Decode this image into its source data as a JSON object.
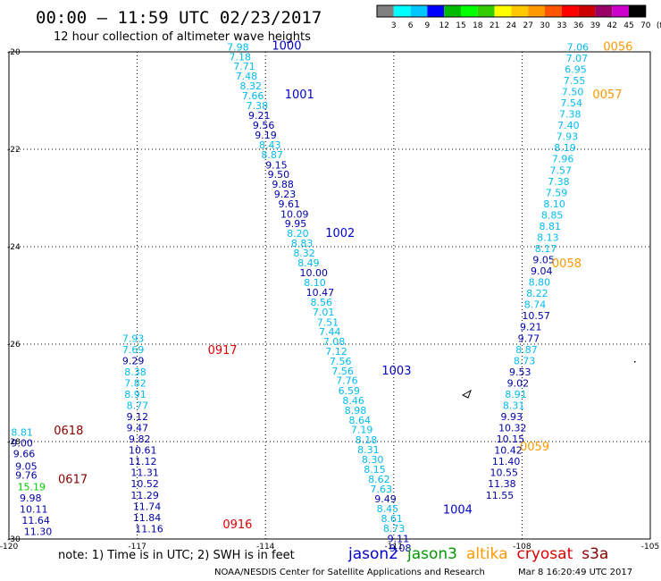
{
  "header": {
    "title": "00:00 — 11:59 UTC 02/23/2017",
    "subtitle": "12 hour collection of altimeter wave heights"
  },
  "colorbar": {
    "colors": [
      "#808080",
      "#00ffff",
      "#00c8ff",
      "#0000ff",
      "#00bb00",
      "#00ff00",
      "#33cc00",
      "#ffff00",
      "#ffc800",
      "#ff9900",
      "#ff5500",
      "#ff0000",
      "#cc0000",
      "#990066",
      "#cc00cc",
      "#000000"
    ],
    "labels": [
      "3",
      "6",
      "9",
      "12",
      "15",
      "18",
      "21",
      "24",
      "27",
      "30",
      "33",
      "36",
      "39",
      "42",
      "45",
      "70",
      "(ft)"
    ]
  },
  "footer": {
    "note": "note:  1) Time is in UTC;  2) SWH is in feet",
    "missions": [
      {
        "name": "jason2",
        "color": "#0000cc"
      },
      {
        "name": "jason3",
        "color": "#009900"
      },
      {
        "name": "altika",
        "color": "#ff9900"
      },
      {
        "name": "cryosat",
        "color": "#dd0000"
      },
      {
        "name": "s3a",
        "color": "#880000"
      }
    ],
    "credit": "NOAA/NESDIS Center for Satellite Applications and Research",
    "timestamp": "Mar  8 16:20:49 UTC 2017"
  },
  "chart_data": {
    "type": "map-scatter",
    "xlim": [
      -120,
      -105
    ],
    "ylim": [
      -30,
      -20
    ],
    "xticks": [
      "-120",
      "-117",
      "-114",
      "-111",
      "-108",
      "-105"
    ],
    "yticks": [
      "-20",
      "-22",
      "-24",
      "-26",
      "-28",
      "-30"
    ],
    "tracks": [
      {
        "mission": "jason2",
        "labels": [
          {
            "text": "1000",
            "lon": -113.85,
            "lat": -19.95
          },
          {
            "text": "1001",
            "lon": -113.55,
            "lat": -20.95
          },
          {
            "text": "1002",
            "lon": -112.6,
            "lat": -23.8
          },
          {
            "text": "1003",
            "lon": -111.28,
            "lat": -26.62
          },
          {
            "text": "1004",
            "lon": -109.85,
            "lat": -29.48
          }
        ],
        "points": [
          {
            "v": "7.98",
            "lon": -114.9,
            "lat": -19.97
          },
          {
            "v": "7.18",
            "lon": -114.85,
            "lat": -20.17
          },
          {
            "v": "7.71",
            "lon": -114.75,
            "lat": -20.37
          },
          {
            "v": "7.48",
            "lon": -114.7,
            "lat": -20.57
          },
          {
            "v": "8.32",
            "lon": -114.6,
            "lat": -20.77
          },
          {
            "v": "7.66",
            "lon": -114.55,
            "lat": -20.97
          },
          {
            "v": "7.38",
            "lon": -114.45,
            "lat": -21.17
          },
          {
            "v": "9.21",
            "lon": -114.4,
            "lat": -21.38
          },
          {
            "v": "9.56",
            "lon": -114.3,
            "lat": -21.58
          },
          {
            "v": "9.19",
            "lon": -114.25,
            "lat": -21.78
          },
          {
            "v": "8.43",
            "lon": -114.15,
            "lat": -21.98
          },
          {
            "v": "8.87",
            "lon": -114.1,
            "lat": -22.18
          },
          {
            "v": "9.15",
            "lon": -114.0,
            "lat": -22.39
          },
          {
            "v": "9.50",
            "lon": -113.95,
            "lat": -22.59
          },
          {
            "v": "9.88",
            "lon": -113.85,
            "lat": -22.79
          },
          {
            "v": "9.23",
            "lon": -113.8,
            "lat": -22.99
          },
          {
            "v": "9.61",
            "lon": -113.7,
            "lat": -23.19
          },
          {
            "v": "10.09",
            "lon": -113.65,
            "lat": -23.4
          },
          {
            "v": "9.95",
            "lon": -113.55,
            "lat": -23.6
          },
          {
            "v": "8.20",
            "lon": -113.5,
            "lat": -23.8
          },
          {
            "v": "8.83",
            "lon": -113.4,
            "lat": -24.0
          },
          {
            "v": "8.32",
            "lon": -113.35,
            "lat": -24.2
          },
          {
            "v": "8.49",
            "lon": -113.25,
            "lat": -24.4
          },
          {
            "v": "10.00",
            "lon": -113.2,
            "lat": -24.61
          },
          {
            "v": "8.10",
            "lon": -113.1,
            "lat": -24.81
          },
          {
            "v": "10.47",
            "lon": -113.05,
            "lat": -25.01
          },
          {
            "v": "8.56",
            "lon": -112.95,
            "lat": -25.21
          },
          {
            "v": "7.01",
            "lon": -112.9,
            "lat": -25.41
          },
          {
            "v": "7.51",
            "lon": -112.8,
            "lat": -25.62
          },
          {
            "v": "7.44",
            "lon": -112.75,
            "lat": -25.82
          },
          {
            "v": "7.08",
            "lon": -112.65,
            "lat": -26.02
          },
          {
            "v": "7.12",
            "lon": -112.6,
            "lat": -26.22
          },
          {
            "v": "7.56",
            "lon": -112.5,
            "lat": -26.42
          },
          {
            "v": "7.56",
            "lon": -112.45,
            "lat": -26.62
          },
          {
            "v": "7.76",
            "lon": -112.35,
            "lat": -26.82
          },
          {
            "v": "6.59",
            "lon": -112.3,
            "lat": -27.03
          },
          {
            "v": "8.46",
            "lon": -112.2,
            "lat": -27.23
          },
          {
            "v": "8.98",
            "lon": -112.15,
            "lat": -27.43
          },
          {
            "v": "8.64",
            "lon": -112.05,
            "lat": -27.63
          },
          {
            "v": "7.19",
            "lon": -112.0,
            "lat": -27.83
          },
          {
            "v": "8.18",
            "lon": -111.9,
            "lat": -28.04
          },
          {
            "v": "8.31",
            "lon": -111.85,
            "lat": -28.24
          },
          {
            "v": "8.30",
            "lon": -111.75,
            "lat": -28.44
          },
          {
            "v": "8.15",
            "lon": -111.7,
            "lat": -28.64
          },
          {
            "v": "8.62",
            "lon": -111.6,
            "lat": -28.84
          },
          {
            "v": "7.63",
            "lon": -111.55,
            "lat": -29.05
          },
          {
            "v": "9.49",
            "lon": -111.45,
            "lat": -29.25
          },
          {
            "v": "8.45",
            "lon": -111.4,
            "lat": -29.45
          },
          {
            "v": "8.61",
            "lon": -111.3,
            "lat": -29.65
          },
          {
            "v": "8.73",
            "lon": -111.25,
            "lat": -29.85
          },
          {
            "v": "9.11",
            "lon": -111.15,
            "lat": -30.06
          },
          {
            "v": "9.08",
            "lon": -111.1,
            "lat": -30.26
          }
        ]
      },
      {
        "mission": "altika",
        "labels": [
          {
            "text": "0056",
            "lon": -106.1,
            "lat": -19.97
          },
          {
            "text": "0057",
            "lon": -106.35,
            "lat": -20.95
          },
          {
            "text": "0058",
            "lon": -107.3,
            "lat": -24.42
          },
          {
            "text": "0059",
            "lon": -108.05,
            "lat": -28.18
          }
        ],
        "points": [
          {
            "v": "7.06",
            "lon": -106.95,
            "lat": -19.97
          },
          {
            "v": "7.07",
            "lon": -106.97,
            "lat": -20.2
          },
          {
            "v": "6.95",
            "lon": -107.0,
            "lat": -20.43
          },
          {
            "v": "7.55",
            "lon": -107.03,
            "lat": -20.66
          },
          {
            "v": "7.50",
            "lon": -107.07,
            "lat": -20.89
          },
          {
            "v": "7.54",
            "lon": -107.1,
            "lat": -21.12
          },
          {
            "v": "7.38",
            "lon": -107.13,
            "lat": -21.35
          },
          {
            "v": "7.40",
            "lon": -107.17,
            "lat": -21.58
          },
          {
            "v": "7.93",
            "lon": -107.2,
            "lat": -21.81
          },
          {
            "v": "8.19",
            "lon": -107.25,
            "lat": -22.04
          },
          {
            "v": "7.96",
            "lon": -107.3,
            "lat": -22.27
          },
          {
            "v": "7.57",
            "lon": -107.35,
            "lat": -22.5
          },
          {
            "v": "7.38",
            "lon": -107.4,
            "lat": -22.73
          },
          {
            "v": "7.59",
            "lon": -107.45,
            "lat": -22.96
          },
          {
            "v": "8.10",
            "lon": -107.5,
            "lat": -23.19
          },
          {
            "v": "8.85",
            "lon": -107.55,
            "lat": -23.42
          },
          {
            "v": "8.81",
            "lon": -107.6,
            "lat": -23.65
          },
          {
            "v": "8.13",
            "lon": -107.65,
            "lat": -23.88
          },
          {
            "v": "8.17",
            "lon": -107.7,
            "lat": -24.11
          },
          {
            "v": "9.05",
            "lon": -107.75,
            "lat": -24.34
          },
          {
            "v": "9.04",
            "lon": -107.8,
            "lat": -24.57
          },
          {
            "v": "8.80",
            "lon": -107.85,
            "lat": -24.8
          },
          {
            "v": "8.22",
            "lon": -107.9,
            "lat": -25.03
          },
          {
            "v": "8.74",
            "lon": -107.95,
            "lat": -25.26
          },
          {
            "v": "10.57",
            "lon": -108.0,
            "lat": -25.49
          },
          {
            "v": "9.21",
            "lon": -108.05,
            "lat": -25.72
          },
          {
            "v": "9.77",
            "lon": -108.1,
            "lat": -25.95
          },
          {
            "v": "8.87",
            "lon": -108.15,
            "lat": -26.18
          },
          {
            "v": "8.73",
            "lon": -108.2,
            "lat": -26.41
          },
          {
            "v": "9.53",
            "lon": -108.3,
            "lat": -26.64
          },
          {
            "v": "9.02",
            "lon": -108.35,
            "lat": -26.87
          },
          {
            "v": "8.91",
            "lon": -108.4,
            "lat": -27.1
          },
          {
            "v": "8.31",
            "lon": -108.45,
            "lat": -27.33
          },
          {
            "v": "9.93",
            "lon": -108.5,
            "lat": -27.56
          },
          {
            "v": "10.32",
            "lon": -108.55,
            "lat": -27.79
          },
          {
            "v": "10.15",
            "lon": -108.6,
            "lat": -28.02
          },
          {
            "v": "10.42",
            "lon": -108.65,
            "lat": -28.25
          },
          {
            "v": "11.40",
            "lon": -108.7,
            "lat": -28.48
          },
          {
            "v": "10.55",
            "lon": -108.75,
            "lat": -28.71
          },
          {
            "v": "11.38",
            "lon": -108.8,
            "lat": -28.94
          },
          {
            "v": "11.55",
            "lon": -108.85,
            "lat": -29.17
          }
        ]
      },
      {
        "mission": "cryosat",
        "labels": [
          {
            "text": "0917",
            "lon": -115.35,
            "lat": -26.2
          },
          {
            "text": "0916",
            "lon": -115.0,
            "lat": -29.78
          }
        ],
        "points": [
          {
            "v": "7.93",
            "lon": -117.35,
            "lat": -25.95
          },
          {
            "v": "7.69",
            "lon": -117.35,
            "lat": -26.18
          },
          {
            "v": "9.29",
            "lon": -117.35,
            "lat": -26.41
          },
          {
            "v": "8.38",
            "lon": -117.3,
            "lat": -26.64
          },
          {
            "v": "7.82",
            "lon": -117.3,
            "lat": -26.87
          },
          {
            "v": "8.91",
            "lon": -117.3,
            "lat": -27.1
          },
          {
            "v": "8.77",
            "lon": -117.25,
            "lat": -27.33
          },
          {
            "v": "9.12",
            "lon": -117.25,
            "lat": -27.56
          },
          {
            "v": "9.47",
            "lon": -117.25,
            "lat": -27.79
          },
          {
            "v": "9.82",
            "lon": -117.2,
            "lat": -28.02
          },
          {
            "v": "10.61",
            "lon": -117.2,
            "lat": -28.25
          },
          {
            "v": "11.12",
            "lon": -117.2,
            "lat": -28.48
          },
          {
            "v": "11.31",
            "lon": -117.15,
            "lat": -28.71
          },
          {
            "v": "10.52",
            "lon": -117.15,
            "lat": -28.94
          },
          {
            "v": "11.29",
            "lon": -117.15,
            "lat": -29.17
          },
          {
            "v": "11.74",
            "lon": -117.1,
            "lat": -29.4
          },
          {
            "v": "11.84",
            "lon": -117.1,
            "lat": -29.63
          },
          {
            "v": "11.16",
            "lon": -117.05,
            "lat": -29.86
          }
        ]
      },
      {
        "mission": "s3a",
        "labels": [
          {
            "text": "0618",
            "lon": -118.95,
            "lat": -27.85
          },
          {
            "text": "0617",
            "lon": -118.85,
            "lat": -28.85
          }
        ],
        "points": [
          {
            "v": "8.81",
            "lon": -119.95,
            "lat": -27.88
          },
          {
            "v": "9.00",
            "lon": -119.95,
            "lat": -28.1
          },
          {
            "v": "9.66",
            "lon": -119.9,
            "lat": -28.32
          },
          {
            "v": "9.05",
            "lon": -119.85,
            "lat": -28.58
          },
          {
            "v": "9.76",
            "lon": -119.85,
            "lat": -28.76
          },
          {
            "v": "15.19",
            "lon": -119.8,
            "lat": -29.0
          },
          {
            "v": "9.98",
            "lon": -119.75,
            "lat": -29.23
          },
          {
            "v": "10.11",
            "lon": -119.75,
            "lat": -29.46
          },
          {
            "v": "11.64",
            "lon": -119.7,
            "lat": -29.69
          },
          {
            "v": "11.30",
            "lon": -119.65,
            "lat": -29.92
          }
        ]
      }
    ]
  }
}
